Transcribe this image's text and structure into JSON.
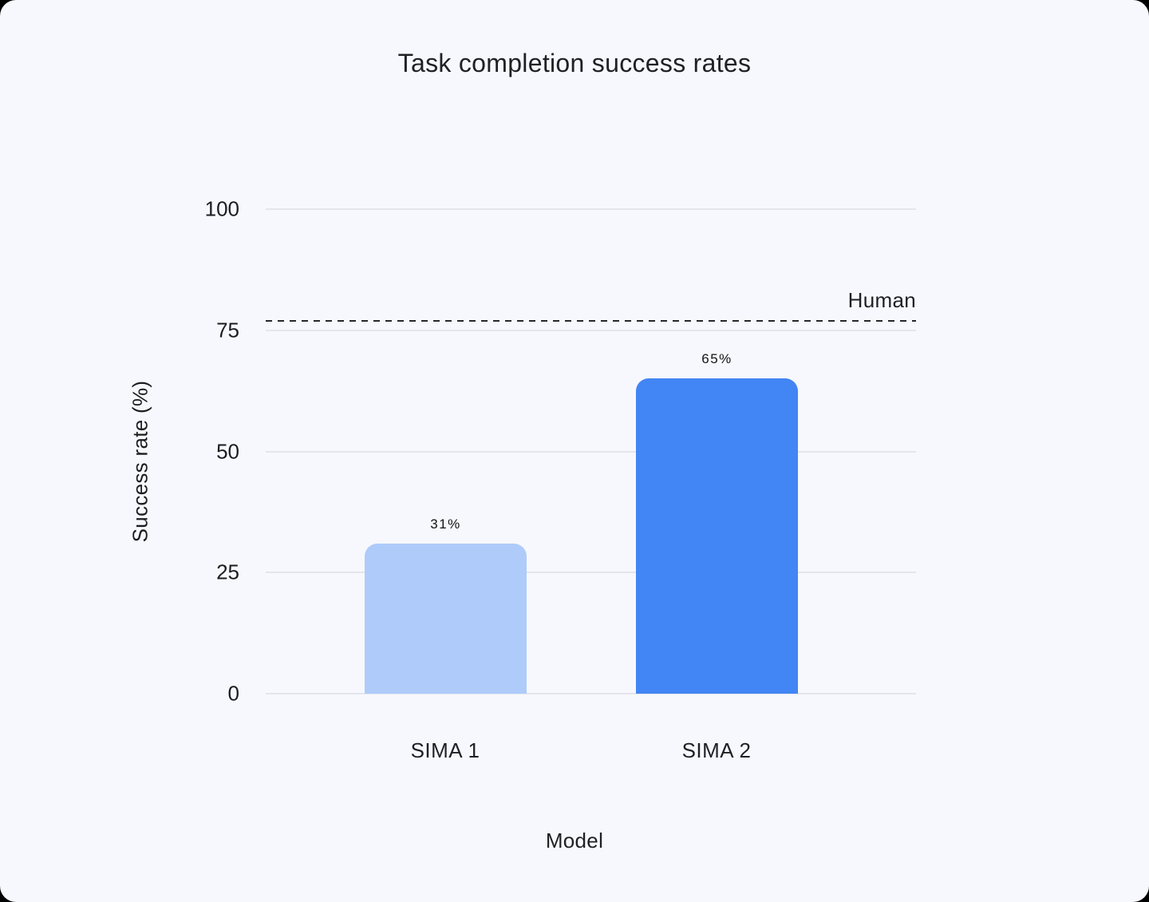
{
  "colors": {
    "page_backdrop": "#000000",
    "card_background": "#f7f8fd",
    "gridline": "#e4e6eb",
    "text": "#202124"
  },
  "chart_data": {
    "type": "bar",
    "title": "Task completion success rates",
    "xlabel": "Model",
    "ylabel": "Success rate (%)",
    "categories": [
      "SIMA 1",
      "SIMA 2"
    ],
    "values": [
      31,
      65
    ],
    "value_labels": [
      "31%",
      "65%"
    ],
    "bar_colors": [
      "#aecbfa",
      "#4285f4"
    ],
    "ylim": [
      0,
      100
    ],
    "yticks": [
      100,
      75,
      50,
      25,
      0
    ],
    "ytick_labels": [
      "100",
      "75",
      "50",
      "25",
      "0"
    ],
    "grid": "horizontal gridlines at y ticks",
    "legend": "none",
    "reference_line": {
      "label": "Human",
      "value": 77,
      "style": "dashed",
      "color": "#26282b"
    }
  }
}
